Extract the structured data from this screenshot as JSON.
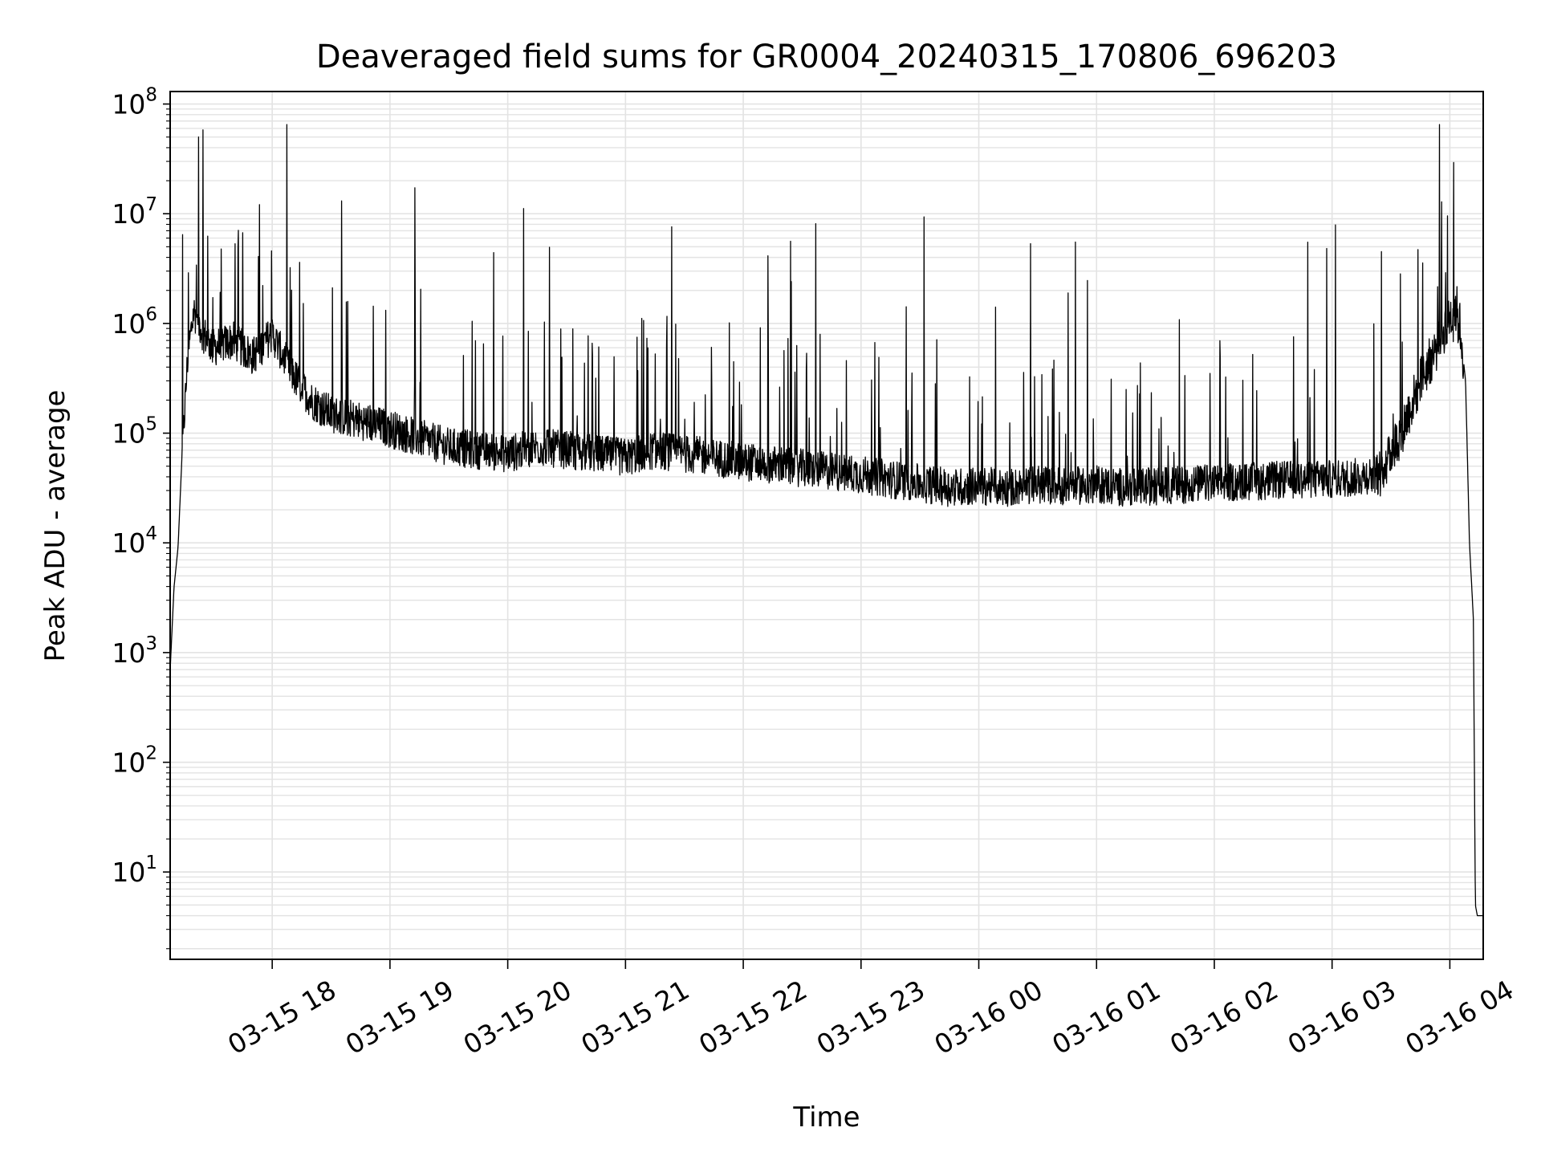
{
  "chart_data": {
    "type": "line",
    "title": "Deaveraged field sums for GR0004_20240315_170806_696203",
    "xlabel": "Time",
    "ylabel": "Peak ADU - average",
    "yscale": "log",
    "ylim": [
      1.6,
      130000000
    ],
    "xlim": [
      "03-15 17:08",
      "03-16 04:17"
    ],
    "grid": true,
    "line_color": "#000000",
    "grid_color": "#e3e3e3",
    "x_ticks": [
      "03-15 18",
      "03-15 19",
      "03-15 20",
      "03-15 21",
      "03-15 22",
      "03-15 23",
      "03-16 00",
      "03-16 01",
      "03-16 02",
      "03-16 03",
      "03-16 04"
    ],
    "y_ticks": [
      {
        "base": "10",
        "exp": "1"
      },
      {
        "base": "10",
        "exp": "2"
      },
      {
        "base": "10",
        "exp": "3"
      },
      {
        "base": "10",
        "exp": "4"
      },
      {
        "base": "10",
        "exp": "5"
      },
      {
        "base": "10",
        "exp": "6"
      },
      {
        "base": "10",
        "exp": "7"
      },
      {
        "base": "10",
        "exp": "8"
      }
    ],
    "series": [
      {
        "x": [
          "03-15 17:08",
          "03-15 17:10",
          "03-15 17:12",
          "03-15 17:14",
          "03-15 17:17",
          "03-15 17:20",
          "03-15 17:25",
          "03-15 17:30",
          "03-15 17:40",
          "03-15 17:50",
          "03-15 18:00",
          "03-15 18:10",
          "03-15 18:20",
          "03-15 18:30",
          "03-15 18:45",
          "03-15 19:00",
          "03-15 19:15",
          "03-15 19:30",
          "03-15 19:45",
          "03-15 20:00",
          "03-15 20:15",
          "03-15 20:30",
          "03-15 20:45",
          "03-15 21:00",
          "03-15 21:15",
          "03-15 21:30",
          "03-15 21:45",
          "03-15 22:00",
          "03-15 22:15",
          "03-15 22:30",
          "03-15 22:45",
          "03-15 23:00",
          "03-15 23:15",
          "03-15 23:30",
          "03-15 23:45",
          "03-16 00:00",
          "03-16 00:15",
          "03-16 00:30",
          "03-16 00:45",
          "03-16 01:00",
          "03-16 01:15",
          "03-16 01:30",
          "03-16 01:45",
          "03-16 02:00",
          "03-16 02:15",
          "03-16 02:30",
          "03-16 02:45",
          "03-16 03:00",
          "03-16 03:15",
          "03-16 03:25",
          "03-16 03:35",
          "03-16 03:45",
          "03-16 03:55",
          "03-16 04:00",
          "03-16 04:05",
          "03-16 04:08",
          "03-16 04:10",
          "03-16 04:12",
          "03-16 04:13",
          "03-16 04:14",
          "03-16 04:17"
        ],
        "y": [
          700,
          4000,
          9000,
          60000,
          500000,
          1300000,
          800000,
          600000,
          700000,
          500000,
          800000,
          350000,
          200000,
          150000,
          130000,
          110000,
          90000,
          75000,
          70000,
          65000,
          75000,
          70000,
          65000,
          60000,
          70000,
          65000,
          60000,
          55000,
          52000,
          48000,
          45000,
          42000,
          38000,
          35000,
          32000,
          33000,
          32000,
          34000,
          33000,
          34000,
          32000,
          33000,
          34000,
          35000,
          36000,
          37000,
          38000,
          38000,
          40000,
          45000,
          100000,
          300000,
          700000,
          1200000,
          1000000,
          300000,
          10000,
          2000,
          5,
          4,
          4
        ]
      }
    ]
  }
}
